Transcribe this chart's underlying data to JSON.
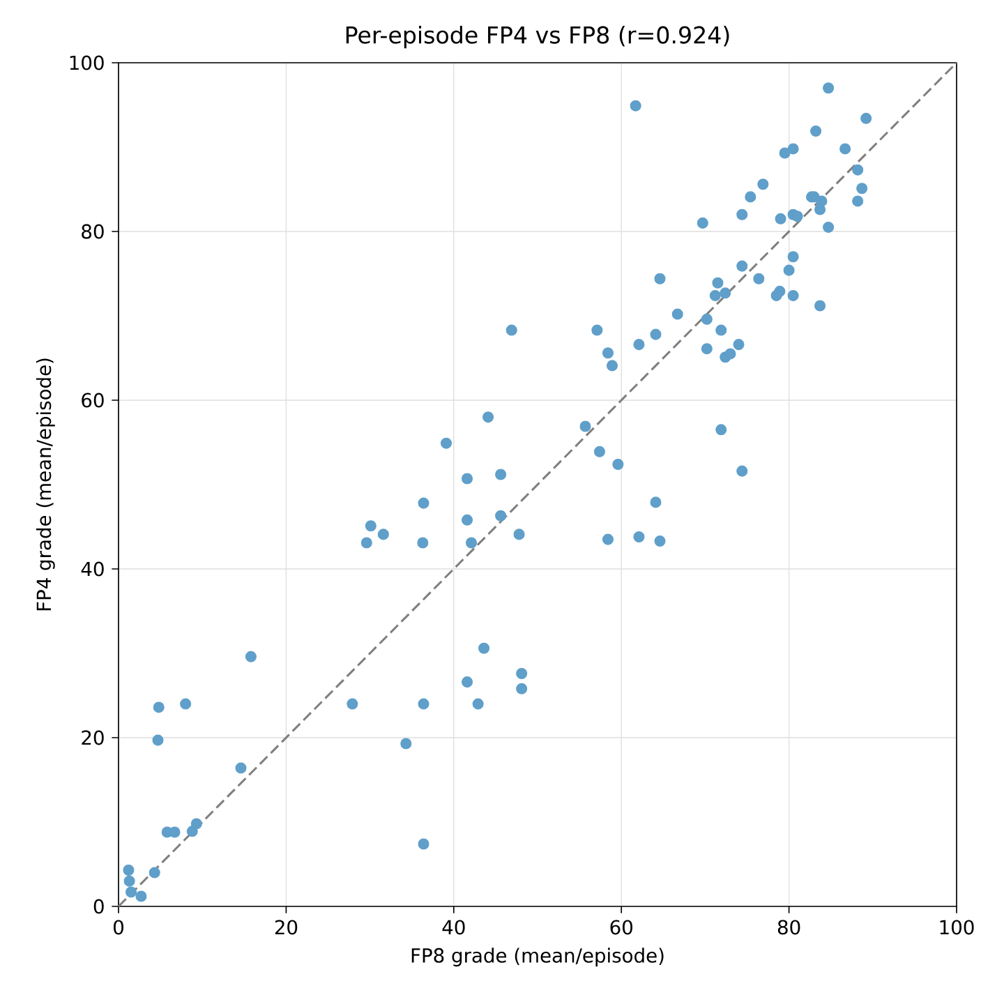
{
  "chart_data": {
    "type": "scatter",
    "title": "Per-episode FP4 vs FP8 (r=0.924)",
    "xlabel": "FP8 grade (mean/episode)",
    "ylabel": "FP4 grade (mean/episode)",
    "xlim": [
      0,
      100
    ],
    "ylim": [
      0,
      100
    ],
    "xticks": [
      0,
      20,
      40,
      60,
      80,
      100
    ],
    "yticks": [
      0,
      20,
      40,
      60,
      80,
      100
    ],
    "grid": true,
    "series": [
      {
        "color": "#5f9fca",
        "marker": "circle",
        "x": [
          1.2,
          1.3,
          1.5,
          2.7,
          4.3,
          4.8,
          4.7,
          5.8,
          6.7,
          8.0,
          8.8,
          9.3,
          14.6,
          15.8,
          27.9,
          34.3,
          36.4,
          36.4,
          41.6,
          42.9,
          48.1,
          48.1,
          44.1,
          39.1,
          55.7,
          57.4,
          59.6,
          41.6,
          45.6,
          36.4,
          64.1,
          30.1,
          31.6,
          29.6,
          36.3,
          41.6,
          45.6,
          42.1,
          47.8,
          58.4,
          62.1,
          64.6,
          43.6,
          64.6,
          57.1,
          58.4,
          58.9,
          62.1,
          64.1,
          66.7,
          70.2,
          70.2,
          71.9,
          71.5,
          71.2,
          72.4,
          74.4,
          76.4,
          74.0,
          72.4,
          73.0,
          71.9,
          74.4,
          46.9,
          61.7,
          84.7,
          89.2,
          83.2,
          79.5,
          80.5,
          86.7,
          88.2,
          76.9,
          75.4,
          82.7,
          83.0,
          88.7,
          83.9,
          88.2,
          83.7,
          74.4,
          69.7,
          79.0,
          80.5,
          81.0,
          84.7,
          80.5,
          80.0,
          78.9,
          78.5,
          80.5,
          83.7
        ],
        "values": [
          4.3,
          3.0,
          1.7,
          1.2,
          4.0,
          23.6,
          19.7,
          8.8,
          8.8,
          24.0,
          8.9,
          9.8,
          16.4,
          29.6,
          24.0,
          19.3,
          24.0,
          7.4,
          26.6,
          24.0,
          27.6,
          25.8,
          58.0,
          54.9,
          56.9,
          53.9,
          52.4,
          50.7,
          51.2,
          47.8,
          47.9,
          45.1,
          44.1,
          43.1,
          43.1,
          45.8,
          46.3,
          43.1,
          44.1,
          43.5,
          43.8,
          43.3,
          30.6,
          74.4,
          68.3,
          65.6,
          64.1,
          66.6,
          67.8,
          70.2,
          69.6,
          66.1,
          68.3,
          73.9,
          72.4,
          72.7,
          75.9,
          74.4,
          66.6,
          65.1,
          65.5,
          56.5,
          51.6,
          68.3,
          94.9,
          97.0,
          93.4,
          91.9,
          89.3,
          89.8,
          89.8,
          87.3,
          85.6,
          84.1,
          84.1,
          84.1,
          85.1,
          83.6,
          83.6,
          82.6,
          82.0,
          81.0,
          81.5,
          82.0,
          81.8,
          80.5,
          77.0,
          75.4,
          72.9,
          72.4,
          72.4,
          71.2
        ]
      },
      {
        "type": "line",
        "color": "#7f7f7f",
        "line_style": "dashed",
        "marker": "none",
        "x": [
          0,
          100
        ],
        "values": [
          0,
          100
        ]
      }
    ]
  }
}
